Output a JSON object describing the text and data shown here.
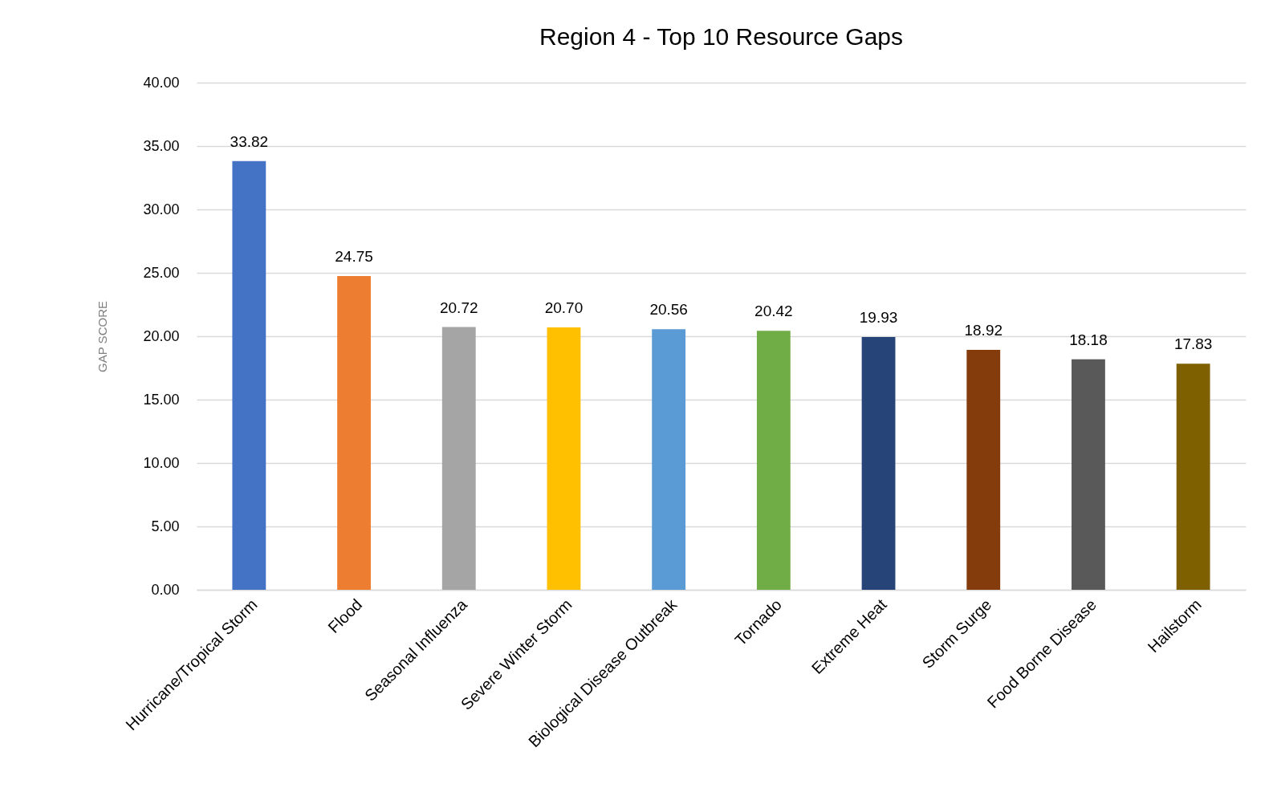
{
  "chart_data": {
    "type": "bar",
    "title": "Region 4 - Top 10 Resource Gaps",
    "ylabel": "GAP SCORE",
    "categories": [
      "Hurricane/Tropical Storm",
      "Flood",
      "Seasonal Influenza",
      "Severe Winter Storm",
      "Biological Disease Outbreak",
      "Tornado",
      "Extreme Heat",
      "Storm Surge",
      "Food Borne Disease",
      "Hailstorm"
    ],
    "values": [
      33.82,
      24.75,
      20.72,
      20.7,
      20.56,
      20.42,
      19.93,
      18.92,
      18.18,
      17.83
    ],
    "value_labels": [
      "33.82",
      "24.75",
      "20.72",
      "20.70",
      "20.56",
      "20.42",
      "19.93",
      "18.92",
      "18.18",
      "17.83"
    ],
    "colors": [
      "#4472c4",
      "#ed7d31",
      "#a5a5a5",
      "#ffc000",
      "#5b9bd5",
      "#70ad47",
      "#264478",
      "#843c0c",
      "#595959",
      "#7f6000"
    ],
    "ylim": [
      0,
      40
    ],
    "yticks": [
      {
        "value": 0,
        "label": "0.00"
      },
      {
        "value": 5,
        "label": "5.00"
      },
      {
        "value": 10,
        "label": "10.00"
      },
      {
        "value": 15,
        "label": "15.00"
      },
      {
        "value": 20,
        "label": "20.00"
      },
      {
        "value": 25,
        "label": "25.00"
      },
      {
        "value": 30,
        "label": "30.00"
      },
      {
        "value": 35,
        "label": "35.00"
      },
      {
        "value": 40,
        "label": "40.00"
      }
    ],
    "grid": "y"
  }
}
